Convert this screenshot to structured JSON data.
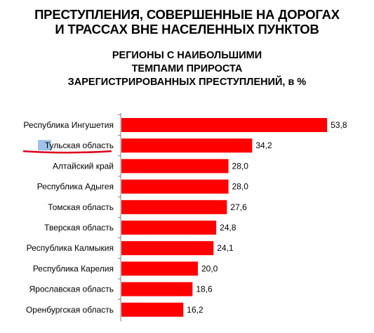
{
  "chart_data": {
    "type": "bar",
    "orientation": "horizontal",
    "title_lines": [
      "ПРЕСТУПЛЕНИЯ, СОВЕРШЕННЫЕ НА ДОРОГАХ",
      "И ТРАССАХ ВНЕ НАСЕЛЕННЫХ ПУНКТОВ"
    ],
    "subtitle_lines": [
      "РЕГИОНЫ С НАИБОЛЬШИМИ",
      "ТЕМПАМИ ПРИРОСТА",
      "ЗАРЕГИСТРИРОВАННЫХ ПРЕСТУПЛЕНИЙ, в %"
    ],
    "categories": [
      "Республика Ингушетия",
      "Тульская область",
      "Алтайский край",
      "Республика Адыгея",
      "Томская область",
      "Тверская область",
      "Республика Калмыкия",
      "Республика Карелия",
      "Ярославская область",
      "Оренбургская область"
    ],
    "values": [
      53.8,
      34.2,
      28.0,
      28.0,
      27.6,
      24.8,
      24.1,
      20.0,
      18.6,
      16.2
    ],
    "value_labels": [
      "53,8",
      "34,2",
      "28,0",
      "28,0",
      "27,6",
      "24,8",
      "24,1",
      "20,0",
      "18,6",
      "16,2"
    ],
    "xlim": [
      0,
      60
    ],
    "grid": false,
    "bar_color": "#ff0000",
    "highlight": {
      "category": "Тульская область",
      "text_background": "#9ec3e6",
      "underline_color": "#e0001a"
    }
  }
}
